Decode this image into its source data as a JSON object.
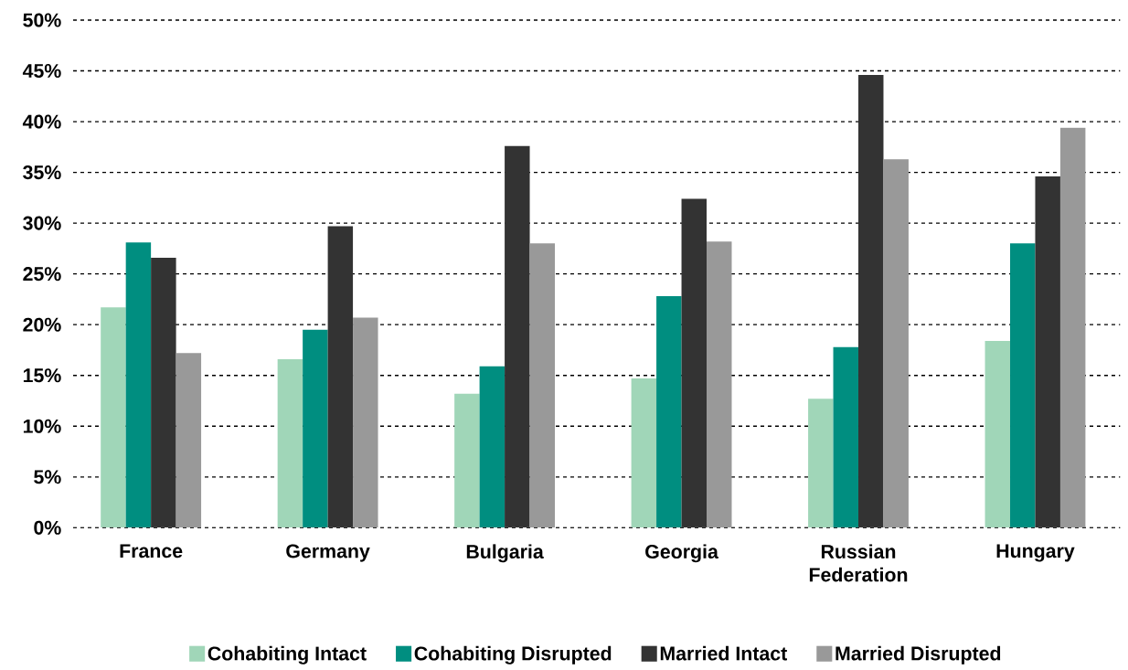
{
  "chart_data": {
    "type": "bar",
    "categories": [
      "France",
      "Germany",
      "Bulgaria",
      "Georgia",
      "Russian Federation",
      "Hungary"
    ],
    "series": [
      {
        "name": "Cohabiting Intact",
        "color": "#a0d6b8",
        "values": [
          21.7,
          16.6,
          13.2,
          14.7,
          12.7,
          18.4
        ]
      },
      {
        "name": "Cohabiting Disrupted",
        "color": "#008e80",
        "values": [
          28.1,
          19.5,
          15.9,
          22.8,
          17.8,
          28.0
        ]
      },
      {
        "name": "Married Intact",
        "color": "#333333",
        "values": [
          26.6,
          29.7,
          37.6,
          32.4,
          44.6,
          34.6
        ]
      },
      {
        "name": "Married Disrupted",
        "color": "#999999",
        "values": [
          17.2,
          20.7,
          28.0,
          28.2,
          36.3,
          39.4
        ]
      }
    ],
    "ylim": [
      0,
      50
    ],
    "yticks": [
      {
        "value": 0,
        "label": "0%"
      },
      {
        "value": 5,
        "label": "5%"
      },
      {
        "value": 10,
        "label": "10%"
      },
      {
        "value": 15,
        "label": "15%"
      },
      {
        "value": 20,
        "label": "20%"
      },
      {
        "value": 25,
        "label": "25%"
      },
      {
        "value": 30,
        "label": "30%"
      },
      {
        "value": 35,
        "label": "35%"
      },
      {
        "value": 40,
        "label": "40%"
      },
      {
        "value": 45,
        "label": "45%"
      },
      {
        "value": 50,
        "label": "50%"
      }
    ],
    "grid": "y",
    "legend": "bottom"
  }
}
